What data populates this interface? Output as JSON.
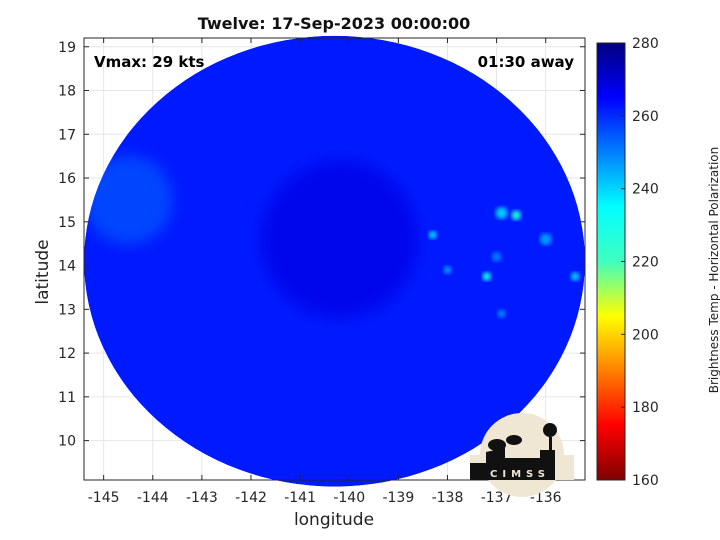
{
  "chart_data": {
    "type": "heatmap",
    "title": "Twelve: 17-Sep-2023 00:00:00",
    "xlabel": "longitude",
    "ylabel": "latitude",
    "xlim": [
      -145.4,
      -135.2
    ],
    "ylim": [
      9.1,
      19.2
    ],
    "xticks": [
      -145,
      -144,
      -143,
      -142,
      -141,
      -140,
      -139,
      -138,
      -137,
      -136
    ],
    "yticks": [
      10,
      11,
      12,
      13,
      14,
      15,
      16,
      17,
      18,
      19
    ],
    "grid": true,
    "annotations": {
      "vmax": "Vmax: 29 kts",
      "time_offset": "01:30 away"
    },
    "colorbar": {
      "label": "Brightness Temp - Horizontal Polarization",
      "range": [
        160,
        280
      ],
      "ticks": [
        160,
        180,
        200,
        220,
        240,
        260,
        280
      ],
      "colormap": "jet"
    },
    "swath": {
      "center_lon": -140.3,
      "center_lat": 14.1,
      "radius_deg_lon": 5.1,
      "radius_deg_lat": 5.15
    },
    "background_tb": 262,
    "features": [
      {
        "lon": -140.2,
        "lat": 14.6,
        "tb": 268,
        "spread": 1.6,
        "desc": "cold core center"
      },
      {
        "lon": -136.6,
        "lat": 15.15,
        "tb": 228,
        "spread": 0.1
      },
      {
        "lon": -136.9,
        "lat": 15.2,
        "tb": 240,
        "spread": 0.12
      },
      {
        "lon": -138.3,
        "lat": 14.7,
        "tb": 238,
        "spread": 0.08
      },
      {
        "lon": -137.2,
        "lat": 13.75,
        "tb": 232,
        "spread": 0.09
      },
      {
        "lon": -135.4,
        "lat": 13.75,
        "tb": 240,
        "spread": 0.09
      },
      {
        "lon": -136.0,
        "lat": 14.6,
        "tb": 246,
        "spread": 0.12
      },
      {
        "lon": -138.0,
        "lat": 13.9,
        "tb": 246,
        "spread": 0.07
      },
      {
        "lon": -136.9,
        "lat": 12.9,
        "tb": 248,
        "spread": 0.08
      },
      {
        "lon": -137.0,
        "lat": 14.2,
        "tb": 250,
        "spread": 0.1
      },
      {
        "lon": -144.5,
        "lat": 15.5,
        "tb": 255,
        "spread": 0.9,
        "desc": "western warm band"
      }
    ],
    "logo": "CIMSS"
  }
}
